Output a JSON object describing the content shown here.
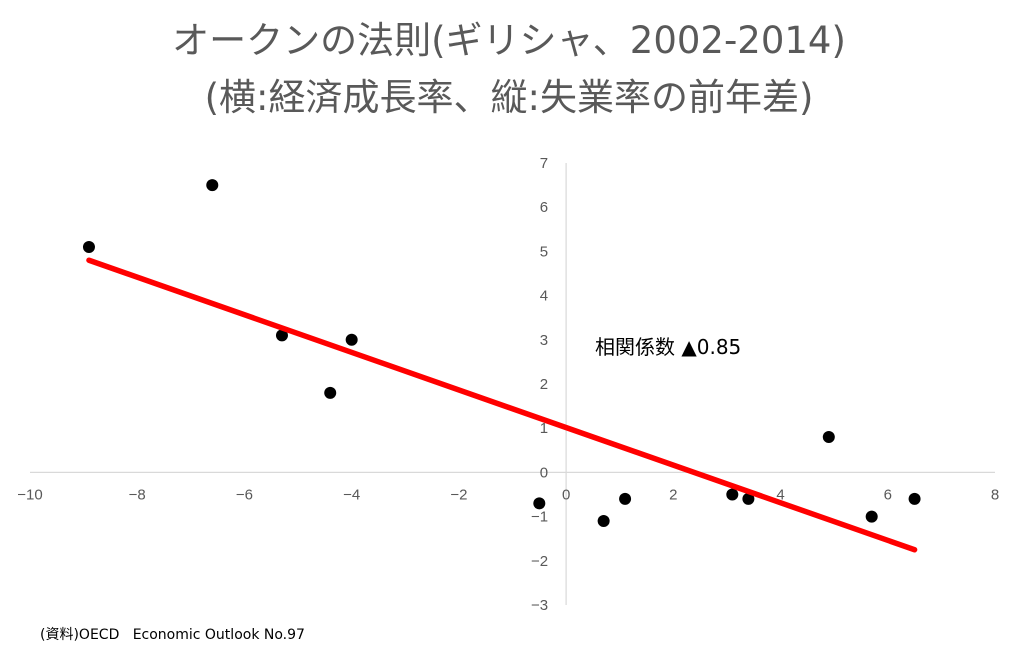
{
  "chart_data": {
    "type": "scatter",
    "title": "オークンの法則(ギリシャ、2002-2014)",
    "subtitle": "(横:経済成長率、縦:失業率の前年差)",
    "xlabel": "",
    "ylabel": "",
    "xlim": [
      -10,
      8
    ],
    "ylim": [
      -3,
      7
    ],
    "x_ticks": [
      -10,
      -8,
      -6,
      -4,
      -2,
      0,
      2,
      4,
      6,
      8
    ],
    "y_ticks": [
      -3,
      -2,
      -1,
      0,
      1,
      2,
      3,
      4,
      5,
      6,
      7
    ],
    "grid": false,
    "legend": "none",
    "points": [
      {
        "x": -8.9,
        "y": 5.1
      },
      {
        "x": -6.6,
        "y": 6.5
      },
      {
        "x": -5.3,
        "y": 3.1
      },
      {
        "x": -4.4,
        "y": 1.8
      },
      {
        "x": -4.0,
        "y": 3.0
      },
      {
        "x": -0.5,
        "y": -0.7
      },
      {
        "x": 0.7,
        "y": -1.1
      },
      {
        "x": 1.1,
        "y": -0.6
      },
      {
        "x": 3.1,
        "y": -0.5
      },
      {
        "x": 3.4,
        "y": -0.6
      },
      {
        "x": 4.9,
        "y": 0.8
      },
      {
        "x": 5.7,
        "y": -1.0
      },
      {
        "x": 6.5,
        "y": -0.6
      }
    ],
    "trendline": {
      "x1": -8.9,
      "y1": 4.8,
      "x2": 6.5,
      "y2": -1.75
    },
    "annotation": "相関係数 ▲0.85",
    "colors": {
      "points": "#000000",
      "trendline": "#ff0000",
      "axis": "#d9d9d9",
      "title": "#595959"
    }
  },
  "source": "(資料)OECD   Economic Outlook No.97"
}
